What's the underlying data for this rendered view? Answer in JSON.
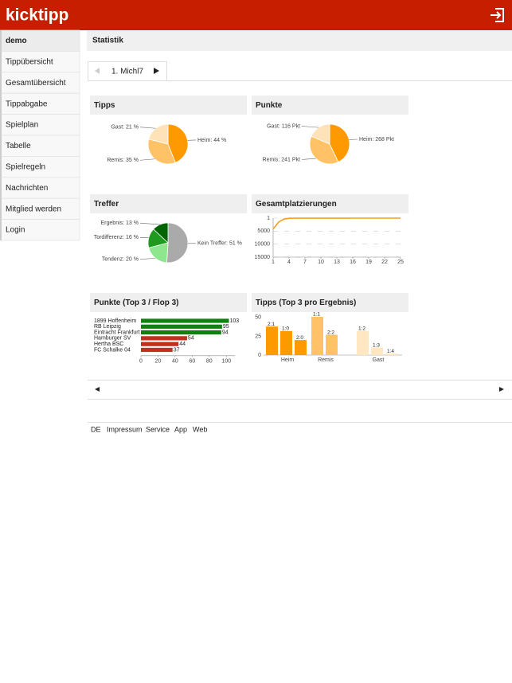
{
  "header": {
    "logo": "kicktipp"
  },
  "sidebar": {
    "items": [
      "demo",
      "Tippübersicht",
      "Gesamtübersicht",
      "Tippabgabe",
      "Spielplan",
      "Tabelle",
      "Spielregeln",
      "Nachrichten",
      "Mitglied werden",
      "Login"
    ]
  },
  "page_title": "Statistik",
  "tab": {
    "label": "1. Michl7"
  },
  "chart_data": [
    {
      "type": "pie",
      "title": "Tipps",
      "values": [
        44,
        35,
        21
      ],
      "value_labels": [
        "Heim: 44 %",
        "Remis: 35 %",
        "Gast: 21 %"
      ],
      "colors": [
        "#ff9900",
        "#ffc266",
        "#ffe2b8"
      ]
    },
    {
      "type": "pie",
      "title": "Punkte",
      "values": [
        268,
        241,
        116
      ],
      "value_labels": [
        "Heim: 268 Pkt",
        "Remis: 241 Pkt",
        "Gast: 116 Pkt"
      ],
      "colors": [
        "#ff9900",
        "#ffc266",
        "#ffe2b8"
      ]
    },
    {
      "type": "pie",
      "title": "Treffer",
      "values": [
        51,
        20,
        16,
        13
      ],
      "value_labels": [
        "Kein Treffer: 51 %",
        "Tendenz: 20 %",
        "Tordifferenz: 16 %",
        "Ergebnis: 13 %"
      ],
      "colors": [
        "#aaaaaa",
        "#8ee68e",
        "#1e9a1e",
        "#006400"
      ]
    },
    {
      "type": "line",
      "title": "Gesamtplatzierungen",
      "x": [
        1,
        2,
        3,
        4,
        5,
        6,
        7,
        8,
        9,
        10,
        11,
        12,
        13,
        14,
        15,
        16,
        17,
        18,
        19,
        20,
        21,
        22,
        23,
        24,
        25
      ],
      "values": [
        4200,
        1600,
        400,
        60,
        30,
        20,
        15,
        12,
        10,
        9,
        8,
        7,
        6,
        5,
        5,
        4,
        4,
        3,
        3,
        2,
        2,
        2,
        1,
        1,
        1
      ],
      "color": "#f0a020",
      "xlim": [
        1,
        25
      ],
      "xticks": [
        1,
        4,
        7,
        10,
        13,
        16,
        19,
        22,
        25
      ],
      "ylim": [
        1,
        15000
      ],
      "yticks": [
        1,
        5000,
        10000,
        15000
      ],
      "y_reversed": true,
      "grid": true
    },
    {
      "type": "hbar",
      "title": "Punkte (Top 3 / Flop 3)",
      "categories": [
        "1899 Hoffenheim",
        "RB Leipzig",
        "Eintracht Frankfurt",
        "Hamburger SV",
        "Hertha BSC",
        "FC Schalke 04"
      ],
      "values": [
        103,
        95,
        94,
        54,
        44,
        37
      ],
      "colors": [
        "#108010",
        "#108010",
        "#108010",
        "#c03020",
        "#c03020",
        "#c03020"
      ],
      "xlim": [
        0,
        110
      ],
      "xticks": [
        0,
        20,
        40,
        60,
        80,
        100
      ]
    },
    {
      "type": "groupbar",
      "title": "Tipps (Top 3 pro Ergebnis)",
      "groups": [
        {
          "name": "Heim",
          "color": "#ff9900",
          "bars": [
            {
              "label": "2:1",
              "value": 38
            },
            {
              "label": "1:0",
              "value": 32
            },
            {
              "label": "2:0",
              "value": 20
            }
          ]
        },
        {
          "name": "Remis",
          "color": "#ffc266",
          "bars": [
            {
              "label": "1:1",
              "value": 51
            },
            {
              "label": "2:2",
              "value": 27
            }
          ]
        },
        {
          "name": "Gast",
          "color": "#ffe7c2",
          "bars": [
            {
              "label": "1:2",
              "value": 32
            },
            {
              "label": "1:3",
              "value": 10
            },
            {
              "label": "1:4",
              "value": 2
            }
          ]
        }
      ],
      "ylim": [
        0,
        52
      ],
      "yticks": [
        0,
        25,
        50
      ]
    }
  ],
  "footer": {
    "links": [
      "DE",
      "Impressum",
      "Service",
      "App",
      "Web"
    ]
  }
}
